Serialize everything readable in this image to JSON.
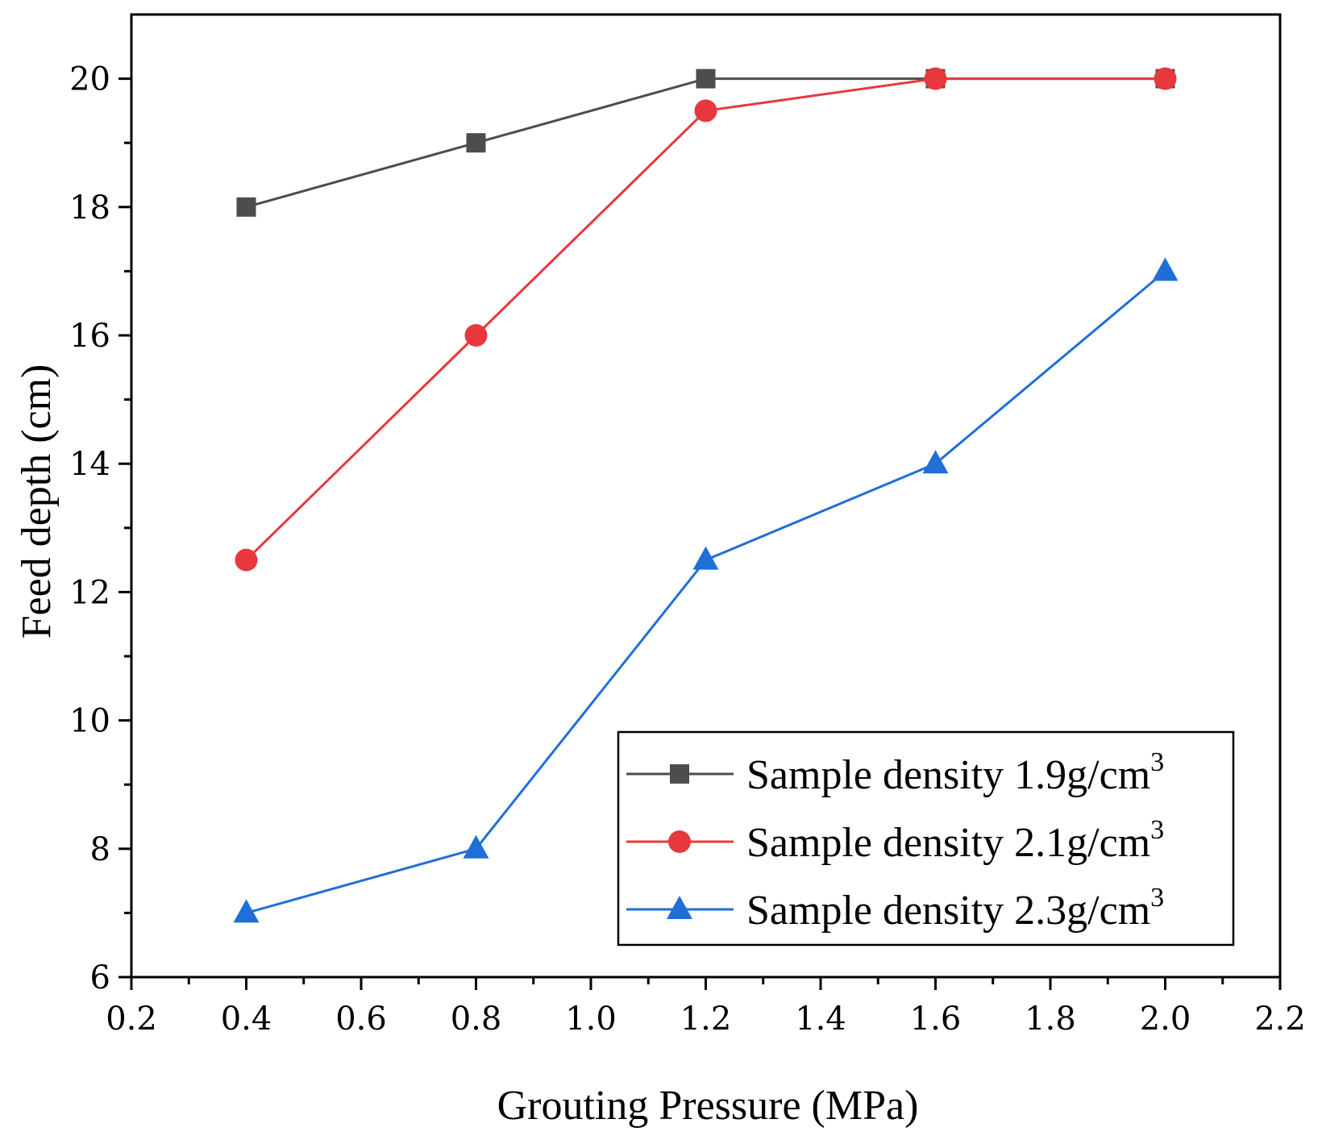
{
  "chart_data": {
    "type": "line",
    "title": "",
    "xlabel": "Grouting Pressure (MPa)",
    "ylabel": "Feed depth (cm)",
    "xlim": [
      0.2,
      2.2
    ],
    "ylim": [
      6,
      21
    ],
    "xticks": [
      0.2,
      0.4,
      0.6,
      0.8,
      1.0,
      1.2,
      1.4,
      1.6,
      1.8,
      2.0,
      2.2
    ],
    "xtick_labels": [
      "0.2",
      "0.4",
      "0.6",
      "0.8",
      "1.0",
      "1.2",
      "1.4",
      "1.6",
      "1.8",
      "2.0",
      "2.2"
    ],
    "yticks": [
      6,
      8,
      10,
      12,
      14,
      16,
      18,
      20
    ],
    "ytick_labels": [
      "6",
      "8",
      "10",
      "12",
      "14",
      "16",
      "18",
      "20"
    ],
    "grid": false,
    "legend_position": "bottom-right",
    "x": [
      0.4,
      0.8,
      1.2,
      1.6,
      2.0
    ],
    "series": [
      {
        "name": "Sample density 1.9g/cm",
        "superscript": "3",
        "color": "#4d4d4d",
        "marker": "square",
        "values": [
          18,
          19,
          20,
          20,
          20
        ]
      },
      {
        "name": "Sample density 2.1g/cm",
        "superscript": "3",
        "color": "#e8383d",
        "marker": "circle",
        "values": [
          12.5,
          16,
          19.5,
          20,
          20
        ]
      },
      {
        "name": "Sample density 2.3g/cm",
        "superscript": "3",
        "color": "#1f6fd6",
        "marker": "triangle",
        "values": [
          7,
          8,
          12.5,
          14,
          17
        ]
      }
    ]
  }
}
